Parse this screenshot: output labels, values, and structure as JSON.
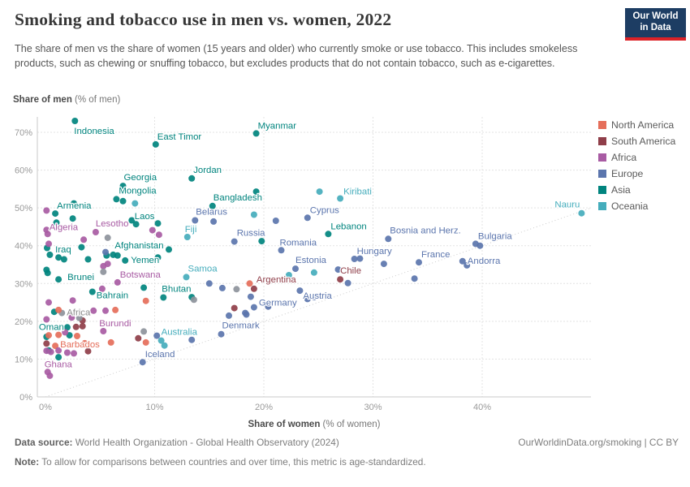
{
  "header": {
    "title": "Smoking and tobacco use in men vs. women, 2022",
    "subtitle": "The share of men vs the share of women (15 years and older) who currently smoke or use tobacco. This includes smokeless products, such as chewing or snuffing tobacco, but excludes products that do not contain tobacco, such as e-cigarettes.",
    "logo": {
      "line1": "Our World",
      "line2": "in Data"
    }
  },
  "axes": {
    "y": {
      "label_bold": "Share of men",
      "label_rest": " (% of men)",
      "ticks": [
        0,
        10,
        20,
        30,
        40,
        50,
        60,
        70
      ],
      "suffix": "%"
    },
    "x": {
      "label_bold": "Share of women",
      "label_rest": " (% of women)",
      "ticks": [
        0,
        10,
        20,
        30,
        40
      ],
      "suffix": "%"
    }
  },
  "legend": [
    {
      "key": "northamerica",
      "label": "North America"
    },
    {
      "key": "southamerica",
      "label": "South America"
    },
    {
      "key": "africa",
      "label": "Africa"
    },
    {
      "key": "europe",
      "label": "Europe"
    },
    {
      "key": "asia",
      "label": "Asia"
    },
    {
      "key": "oceania",
      "label": "Oceania"
    }
  ],
  "colors": {
    "continents": {
      "northamerica": "#E56E5A",
      "southamerica": "#8F3E49",
      "africa": "#A85BA3",
      "europe": "#5B75AD",
      "asia": "#00847E",
      "oceania": "#45ADBC",
      "aggregate": "#8D939B"
    },
    "aggregate_label": "#8b8b8b",
    "grid": "#e3e3e3",
    "axis": "#c9c9c9",
    "tick_text": "#9a9a9a",
    "diagonal": "#cccccc",
    "logo_bg": "#1d3d63",
    "logo_red": "#dc2227"
  },
  "footer": {
    "data_source_label": "Data source:",
    "data_source_text": " World Health Organization - Global Health Observatory (2024)",
    "rights": "OurWorldinData.org/smoking | CC BY",
    "note_label": "Note:",
    "note_text": " To allow for comparisons between countries and over time, this metric is age-standardized."
  },
  "chart_data": {
    "type": "scatter",
    "title": "Smoking and tobacco use in men vs. women, 2022",
    "xlabel": "Share of women (% of women)",
    "ylabel": "Share of men (% of men)",
    "xlim": [
      0,
      50
    ],
    "ylim": [
      0,
      75
    ],
    "grid": true,
    "diagonal_reference_line": "y = x",
    "legend_position": "right",
    "points": [
      {
        "n": "Indonesia",
        "x": 2.7,
        "y": 73.0,
        "c": "asia",
        "l": [
          -1,
          16,
          "s"
        ]
      },
      {
        "n": "East Timor",
        "x": 10.1,
        "y": 66.8,
        "c": "asia",
        "l": [
          2,
          -6,
          "s"
        ]
      },
      {
        "n": "Myanmar",
        "x": 19.3,
        "y": 69.7,
        "c": "asia",
        "l": [
          2,
          -6,
          "s"
        ]
      },
      {
        "n": "Jordan",
        "x": 13.4,
        "y": 57.8,
        "c": "asia",
        "l": [
          2,
          -7,
          "s"
        ]
      },
      {
        "n": "Georgia",
        "x": 7.1,
        "y": 55.8,
        "c": "asia",
        "l": [
          1,
          -7,
          "s"
        ]
      },
      {
        "n": "Mongolia",
        "x": 6.5,
        "y": 52.3,
        "c": "asia",
        "l": [
          3,
          -7,
          "s"
        ]
      },
      {
        "n": "Armenia",
        "x": 0.9,
        "y": 48.5,
        "c": "asia",
        "l": [
          2,
          -6,
          "s"
        ]
      },
      {
        "n": "Bangladesh",
        "x": 15.3,
        "y": 50.5,
        "c": "asia",
        "l": [
          1,
          -7,
          "s"
        ]
      },
      {
        "n": "Belarus",
        "x": 13.7,
        "y": 46.7,
        "c": "europe",
        "l": [
          1,
          -7,
          "s"
        ]
      },
      {
        "n": "Laos",
        "x": 10.3,
        "y": 45.9,
        "c": "asia",
        "l": [
          -4,
          -5,
          "e"
        ]
      },
      {
        "n": "Lesotho",
        "x": 4.6,
        "y": 43.6,
        "c": "africa",
        "l": [
          0,
          -7,
          "s"
        ]
      },
      {
        "n": "Algeria",
        "x": 0.2,
        "y": 43.1,
        "c": "africa",
        "l": [
          2,
          -5,
          "s"
        ]
      },
      {
        "n": "Fiji",
        "x": 13.0,
        "y": 42.3,
        "c": "oceania",
        "l": [
          -3,
          -6,
          "s"
        ]
      },
      {
        "n": "Russia",
        "x": 17.3,
        "y": 41.1,
        "c": "europe",
        "l": [
          3,
          -7,
          "s"
        ]
      },
      {
        "n": "Iraq",
        "x": 1.2,
        "y": 36.9,
        "c": "asia",
        "l": [
          -4,
          -6,
          "s"
        ]
      },
      {
        "n": "Afghanistan",
        "x": 6.2,
        "y": 37.6,
        "c": "asia",
        "l": [
          2,
          -8,
          "s"
        ]
      },
      {
        "n": "Yemen",
        "x": 7.3,
        "y": 36.1,
        "c": "asia",
        "l": [
          7,
          3,
          "s"
        ]
      },
      {
        "n": "Romania",
        "x": 21.6,
        "y": 38.8,
        "c": "europe",
        "l": [
          -2,
          -6,
          "s"
        ]
      },
      {
        "n": "Estonia",
        "x": 22.9,
        "y": 33.9,
        "c": "europe",
        "l": [
          0,
          -7,
          "s"
        ]
      },
      {
        "n": "Kiribati",
        "x": 27.0,
        "y": 52.5,
        "c": "oceania",
        "l": [
          4,
          -5,
          "s"
        ]
      },
      {
        "n": "Cyprus",
        "x": 24.0,
        "y": 47.4,
        "c": "europe",
        "l": [
          3,
          -6,
          "s"
        ]
      },
      {
        "n": "Lebanon",
        "x": 25.9,
        "y": 43.1,
        "c": "asia",
        "l": [
          3,
          -6,
          "s"
        ]
      },
      {
        "n": "Nauru",
        "x": 49.1,
        "y": 48.6,
        "c": "oceania",
        "l": [
          -2,
          -7,
          "e"
        ]
      },
      {
        "n": "Bosnia and Herz.",
        "x": 31.4,
        "y": 41.8,
        "c": "europe",
        "l": [
          2,
          -7,
          "s"
        ]
      },
      {
        "n": "Bulgaria",
        "x": 39.4,
        "y": 40.5,
        "c": "europe",
        "l": [
          3,
          -6,
          "s"
        ]
      },
      {
        "n": "Hungary",
        "x": 28.3,
        "y": 36.5,
        "c": "europe",
        "l": [
          3,
          -6,
          "s"
        ]
      },
      {
        "n": "France",
        "x": 34.2,
        "y": 35.6,
        "c": "europe",
        "l": [
          3,
          -6,
          "s"
        ]
      },
      {
        "n": "Andorra",
        "x": 38.2,
        "y": 35.9,
        "c": "europe",
        "l": [
          6,
          3,
          "s"
        ]
      },
      {
        "n": "Chile",
        "x": 27.0,
        "y": 31.1,
        "c": "southamerica",
        "l": [
          0,
          -7,
          "s"
        ]
      },
      {
        "n": "Argentina",
        "x": 19.1,
        "y": 28.6,
        "c": "southamerica",
        "l": [
          3,
          -8,
          "s"
        ]
      },
      {
        "n": "Austria",
        "x": 23.3,
        "y": 28.1,
        "c": "europe",
        "l": [
          4,
          10,
          "s"
        ]
      },
      {
        "n": "Germany",
        "x": 18.8,
        "y": 26.5,
        "c": "europe",
        "l": [
          10,
          11,
          "s"
        ]
      },
      {
        "n": "Brunei",
        "x": 1.2,
        "y": 31.1,
        "c": "asia",
        "l": [
          11,
          1,
          "s"
        ]
      },
      {
        "n": "Botswana",
        "x": 6.6,
        "y": 30.3,
        "c": "africa",
        "l": [
          3,
          -6,
          "s"
        ]
      },
      {
        "n": "Samoa",
        "x": 12.9,
        "y": 31.7,
        "c": "oceania",
        "l": [
          2,
          -7,
          "s"
        ]
      },
      {
        "n": "Bahrain",
        "x": 4.3,
        "y": 27.8,
        "c": "asia",
        "l": [
          5,
          8,
          "s"
        ]
      },
      {
        "n": "Bhutan",
        "x": 10.8,
        "y": 26.3,
        "c": "asia",
        "l": [
          -2,
          -7,
          "s"
        ]
      },
      {
        "n": "Oman",
        "x": 2.0,
        "y": 18.4,
        "c": "asia",
        "l": [
          -4,
          3,
          "e"
        ]
      },
      {
        "n": "Burundi",
        "x": 5.3,
        "y": 17.4,
        "c": "africa",
        "l": [
          -5,
          -6,
          "s"
        ]
      },
      {
        "n": "Denmark",
        "x": 16.1,
        "y": 16.6,
        "c": "europe",
        "l": [
          1,
          -7,
          "s"
        ]
      },
      {
        "n": "Australia",
        "x": 10.6,
        "y": 14.9,
        "c": "oceania",
        "l": [
          0,
          -7,
          "s"
        ]
      },
      {
        "n": "Barbados",
        "x": 0.9,
        "y": 13.5,
        "c": "northamerica",
        "l": [
          6,
          2,
          "s"
        ]
      },
      {
        "n": "Iceland",
        "x": 8.9,
        "y": 9.2,
        "c": "europe",
        "l": [
          3,
          -6,
          "s"
        ]
      },
      {
        "n": "Ghana",
        "x": 0.2,
        "y": 6.6,
        "c": "africa",
        "l": [
          -4,
          -6,
          "s"
        ]
      },
      {
        "n": "Africa",
        "x": 1.5,
        "y": 22.2,
        "c": "aggregate",
        "l": [
          6,
          3,
          "s"
        ]
      },
      {
        "x": 0.2,
        "y": 32.8,
        "c": "asia"
      },
      {
        "x": 0.1,
        "y": 33.6,
        "c": "asia"
      },
      {
        "x": 0.15,
        "y": 39.4,
        "c": "asia"
      },
      {
        "x": 2.5,
        "y": 47.2,
        "c": "asia"
      },
      {
        "x": 1.0,
        "y": 46.1,
        "c": "asia"
      },
      {
        "x": 2.6,
        "y": 51.2,
        "c": "asia"
      },
      {
        "x": 7.1,
        "y": 51.8,
        "c": "asia"
      },
      {
        "x": 8.3,
        "y": 45.7,
        "c": "asia"
      },
      {
        "x": 7.9,
        "y": 46.7,
        "c": "asia"
      },
      {
        "x": 19.3,
        "y": 54.3,
        "c": "asia"
      },
      {
        "x": 19.8,
        "y": 41.2,
        "c": "asia"
      },
      {
        "x": 11.3,
        "y": 39.0,
        "c": "asia"
      },
      {
        "x": 10.3,
        "y": 36.9,
        "c": "asia"
      },
      {
        "x": 5.6,
        "y": 37.4,
        "c": "asia"
      },
      {
        "x": 6.6,
        "y": 37.4,
        "c": "asia"
      },
      {
        "x": 0.4,
        "y": 37.6,
        "c": "asia"
      },
      {
        "x": 1.7,
        "y": 36.4,
        "c": "asia"
      },
      {
        "x": 3.9,
        "y": 36.4,
        "c": "asia"
      },
      {
        "x": 3.3,
        "y": 39.6,
        "c": "asia"
      },
      {
        "x": 9.0,
        "y": 28.9,
        "c": "asia"
      },
      {
        "x": 0.8,
        "y": 22.5,
        "c": "asia"
      },
      {
        "x": 2.2,
        "y": 16.3,
        "c": "asia"
      },
      {
        "x": 0.1,
        "y": 15.9,
        "c": "asia"
      },
      {
        "x": 1.2,
        "y": 10.5,
        "c": "asia"
      },
      {
        "x": 0.3,
        "y": 12.3,
        "c": "asia"
      },
      {
        "x": 13.4,
        "y": 26.4,
        "c": "asia"
      },
      {
        "x": 8.2,
        "y": 51.2,
        "c": "oceania"
      },
      {
        "x": 25.1,
        "y": 54.3,
        "c": "oceania"
      },
      {
        "x": 19.1,
        "y": 48.2,
        "c": "oceania"
      },
      {
        "x": 22.3,
        "y": 32.2,
        "c": "oceania"
      },
      {
        "x": 24.6,
        "y": 32.9,
        "c": "oceania"
      },
      {
        "x": 10.9,
        "y": 13.6,
        "c": "oceania"
      },
      {
        "x": 5.5,
        "y": 38.3,
        "c": "europe"
      },
      {
        "x": 15.4,
        "y": 46.4,
        "c": "europe"
      },
      {
        "x": 21.1,
        "y": 46.6,
        "c": "europe"
      },
      {
        "x": 26.8,
        "y": 33.7,
        "c": "europe"
      },
      {
        "x": 28.8,
        "y": 36.6,
        "c": "europe"
      },
      {
        "x": 31.0,
        "y": 35.2,
        "c": "europe"
      },
      {
        "x": 33.8,
        "y": 31.3,
        "c": "europe"
      },
      {
        "x": 38.6,
        "y": 34.8,
        "c": "europe"
      },
      {
        "x": 39.8,
        "y": 40.0,
        "c": "europe"
      },
      {
        "x": 24.0,
        "y": 25.9,
        "c": "europe"
      },
      {
        "x": 24.6,
        "y": 26.4,
        "c": "europe"
      },
      {
        "x": 16.2,
        "y": 28.8,
        "c": "europe"
      },
      {
        "x": 15.0,
        "y": 30.0,
        "c": "europe"
      },
      {
        "x": 19.1,
        "y": 23.7,
        "c": "europe"
      },
      {
        "x": 20.4,
        "y": 23.9,
        "c": "europe"
      },
      {
        "x": 16.8,
        "y": 21.5,
        "c": "europe"
      },
      {
        "x": 18.4,
        "y": 21.8,
        "c": "europe"
      },
      {
        "x": 18.3,
        "y": 22.2,
        "c": "europe"
      },
      {
        "x": 13.4,
        "y": 15.1,
        "c": "europe"
      },
      {
        "x": 10.2,
        "y": 16.2,
        "c": "europe"
      },
      {
        "x": 27.7,
        "y": 30.1,
        "c": "europe"
      },
      {
        "x": 0.1,
        "y": 49.3,
        "c": "africa"
      },
      {
        "x": 0.1,
        "y": 44.2,
        "c": "africa"
      },
      {
        "x": 3.5,
        "y": 41.6,
        "c": "africa"
      },
      {
        "x": 10.4,
        "y": 42.9,
        "c": "africa"
      },
      {
        "x": 9.8,
        "y": 44.1,
        "c": "africa"
      },
      {
        "x": 5.7,
        "y": 35.2,
        "c": "africa"
      },
      {
        "x": 5.3,
        "y": 34.6,
        "c": "africa"
      },
      {
        "x": 5.2,
        "y": 28.6,
        "c": "africa"
      },
      {
        "x": 2.5,
        "y": 25.5,
        "c": "africa"
      },
      {
        "x": 0.3,
        "y": 25.0,
        "c": "africa"
      },
      {
        "x": 4.4,
        "y": 22.8,
        "c": "africa"
      },
      {
        "x": 5.5,
        "y": 22.8,
        "c": "africa"
      },
      {
        "x": 2.4,
        "y": 21.0,
        "c": "africa"
      },
      {
        "x": 0.1,
        "y": 20.5,
        "c": "africa"
      },
      {
        "x": 1.8,
        "y": 17.1,
        "c": "africa"
      },
      {
        "x": 0.1,
        "y": 12.2,
        "c": "africa"
      },
      {
        "x": 0.5,
        "y": 11.9,
        "c": "africa"
      },
      {
        "x": 2.0,
        "y": 11.7,
        "c": "africa"
      },
      {
        "x": 2.6,
        "y": 11.5,
        "c": "africa"
      },
      {
        "x": 1.2,
        "y": 12.3,
        "c": "africa"
      },
      {
        "x": 0.4,
        "y": 5.6,
        "c": "africa"
      },
      {
        "x": 0.3,
        "y": 40.5,
        "c": "africa"
      },
      {
        "x": 18.7,
        "y": 30.0,
        "c": "northamerica"
      },
      {
        "x": 9.2,
        "y": 25.4,
        "c": "northamerica"
      },
      {
        "x": 6.4,
        "y": 23.0,
        "c": "northamerica"
      },
      {
        "x": 1.2,
        "y": 23.0,
        "c": "northamerica"
      },
      {
        "x": 0.3,
        "y": 16.3,
        "c": "northamerica"
      },
      {
        "x": 1.2,
        "y": 16.4,
        "c": "northamerica"
      },
      {
        "x": 2.9,
        "y": 16.1,
        "c": "northamerica"
      },
      {
        "x": 3.6,
        "y": 14.2,
        "c": "northamerica"
      },
      {
        "x": 6.0,
        "y": 14.4,
        "c": "northamerica"
      },
      {
        "x": 9.2,
        "y": 14.4,
        "c": "northamerica"
      },
      {
        "x": 3.4,
        "y": 18.7,
        "c": "southamerica"
      },
      {
        "x": 2.8,
        "y": 18.5,
        "c": "southamerica"
      },
      {
        "x": 3.4,
        "y": 20.2,
        "c": "southamerica"
      },
      {
        "x": 8.5,
        "y": 15.5,
        "c": "southamerica"
      },
      {
        "x": 3.9,
        "y": 12.1,
        "c": "southamerica"
      },
      {
        "x": 0.1,
        "y": 14.1,
        "c": "southamerica"
      },
      {
        "x": 17.3,
        "y": 23.5,
        "c": "southamerica"
      },
      {
        "x": 5.3,
        "y": 33.1,
        "c": "aggregate"
      },
      {
        "x": 5.7,
        "y": 42.1,
        "c": "aggregate"
      },
      {
        "x": 13.6,
        "y": 25.7,
        "c": "aggregate"
      },
      {
        "x": 9.0,
        "y": 17.3,
        "c": "aggregate"
      },
      {
        "x": 17.5,
        "y": 28.5,
        "c": "aggregate"
      },
      {
        "x": 3.1,
        "y": 20.9,
        "c": "aggregate"
      }
    ]
  }
}
